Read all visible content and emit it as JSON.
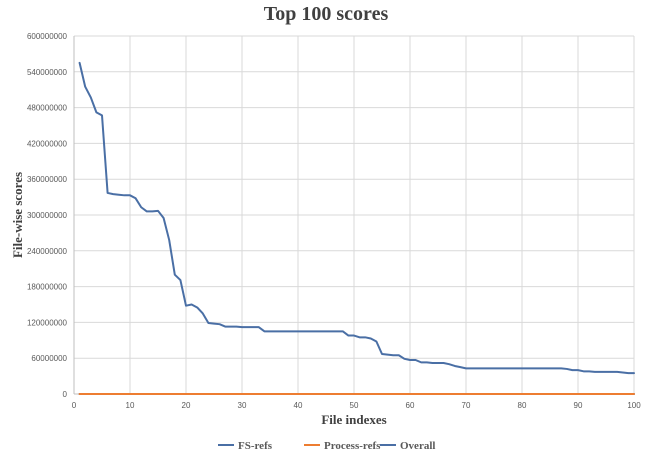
{
  "chart_data": {
    "type": "line",
    "title": "Top 100 scores",
    "xlabel": "File indexes",
    "ylabel": "File-wise scores",
    "xlim": [
      0,
      100
    ],
    "ylim": [
      0,
      600000000
    ],
    "x_ticks": [
      "0",
      "10",
      "20",
      "30",
      "40",
      "50",
      "60",
      "70",
      "80",
      "90",
      "100"
    ],
    "y_ticks": [
      "0",
      "60000000",
      "120000000",
      "180000000",
      "240000000",
      "300000000",
      "360000000",
      "420000000",
      "480000000",
      "540000000",
      "600000000"
    ],
    "grid": true,
    "legend_position": "bottom",
    "x": [
      1,
      2,
      3,
      4,
      5,
      6,
      7,
      8,
      9,
      10,
      11,
      12,
      13,
      14,
      15,
      16,
      17,
      18,
      19,
      20,
      21,
      22,
      23,
      24,
      25,
      26,
      27,
      28,
      29,
      30,
      31,
      32,
      33,
      34,
      35,
      36,
      37,
      38,
      39,
      40,
      41,
      42,
      43,
      44,
      45,
      46,
      47,
      48,
      49,
      50,
      51,
      52,
      53,
      54,
      55,
      56,
      57,
      58,
      59,
      60,
      61,
      62,
      63,
      64,
      65,
      66,
      67,
      68,
      69,
      70,
      71,
      72,
      73,
      74,
      75,
      76,
      77,
      78,
      79,
      80,
      81,
      82,
      83,
      84,
      85,
      86,
      87,
      88,
      89,
      90,
      91,
      92,
      93,
      94,
      95,
      96,
      97,
      98,
      99,
      100
    ],
    "series": [
      {
        "name": "FS-refs",
        "color": "#4a6fa5",
        "values": [
          555000000,
          515000000,
          497000000,
          472000000,
          467000000,
          337000000,
          335000000,
          334000000,
          333000000,
          333000000,
          328000000,
          313000000,
          306000000,
          306000000,
          307000000,
          295000000,
          258000000,
          200000000,
          191000000,
          148000000,
          150000000,
          145000000,
          135000000,
          119000000,
          118000000,
          117000000,
          113000000,
          113000000,
          113000000,
          112000000,
          112000000,
          112000000,
          112000000,
          105000000,
          105000000,
          105000000,
          105000000,
          105000000,
          105000000,
          105000000,
          105000000,
          105000000,
          105000000,
          105000000,
          105000000,
          105000000,
          105000000,
          105000000,
          98000000,
          98000000,
          95000000,
          95000000,
          93000000,
          88000000,
          67000000,
          66000000,
          65000000,
          65000000,
          59000000,
          57000000,
          57000000,
          53000000,
          53000000,
          52000000,
          52000000,
          52000000,
          50000000,
          47000000,
          45000000,
          43000000,
          43000000,
          43000000,
          43000000,
          43000000,
          43000000,
          43000000,
          43000000,
          43000000,
          43000000,
          43000000,
          43000000,
          43000000,
          43000000,
          43000000,
          43000000,
          43000000,
          43000000,
          42000000,
          40000000,
          40000000,
          38000000,
          38000000,
          37000000,
          37000000,
          37000000,
          37000000,
          37000000,
          36000000,
          35000000,
          35000000
        ]
      },
      {
        "name": "Process-refs",
        "color": "#ed7d31",
        "values": [
          0,
          0,
          0,
          0,
          0,
          0,
          0,
          0,
          0,
          0,
          0,
          0,
          0,
          0,
          0,
          0,
          0,
          0,
          0,
          0,
          0,
          0,
          0,
          0,
          0,
          0,
          0,
          0,
          0,
          0,
          0,
          0,
          0,
          0,
          0,
          0,
          0,
          0,
          0,
          0,
          0,
          0,
          0,
          0,
          0,
          0,
          0,
          0,
          0,
          0,
          0,
          0,
          0,
          0,
          0,
          0,
          0,
          0,
          0,
          0,
          0,
          0,
          0,
          0,
          0,
          0,
          0,
          0,
          0,
          0,
          0,
          0,
          0,
          0,
          0,
          0,
          0,
          0,
          0,
          0,
          0,
          0,
          0,
          0,
          0,
          0,
          0,
          0,
          0,
          0,
          0,
          0,
          0,
          0,
          0,
          0,
          0,
          0,
          0,
          0
        ]
      },
      {
        "name": "Overall",
        "color": "#4a6fa5",
        "values": [
          0,
          0,
          0,
          0,
          0,
          0,
          0,
          0,
          0,
          0,
          0,
          0,
          0,
          0,
          0,
          0,
          0,
          0,
          0,
          0,
          0,
          0,
          0,
          0,
          0,
          0,
          0,
          0,
          0,
          0,
          0,
          0,
          0,
          0,
          0,
          0,
          0,
          0,
          0,
          0,
          0,
          0,
          0,
          0,
          0,
          0,
          0,
          0,
          0,
          0,
          0,
          0,
          0,
          0,
          0,
          0,
          0,
          0,
          0,
          0,
          0,
          0,
          0,
          0,
          0,
          0,
          0,
          0,
          0,
          0,
          0,
          0,
          0,
          0,
          0,
          0,
          0,
          0,
          0,
          0,
          0,
          0,
          0,
          0,
          0,
          0,
          0,
          0,
          0,
          0,
          0,
          0,
          0,
          0,
          0,
          0,
          0,
          0,
          0,
          0
        ]
      }
    ]
  }
}
